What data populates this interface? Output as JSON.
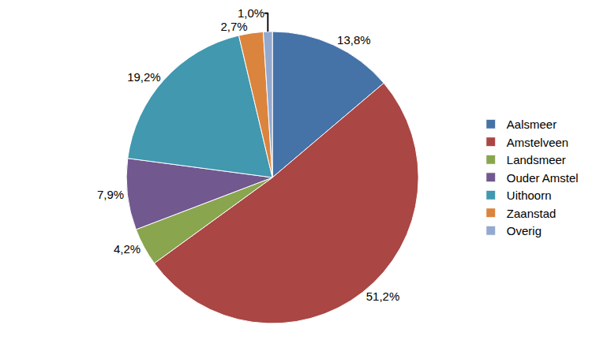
{
  "chart_data": {
    "type": "pie",
    "categories": [
      "Aalsmeer",
      "Amstelveen",
      "Landsmeer",
      "Ouder Amstel",
      "Uithoorn",
      "Zaanstad",
      "Overig"
    ],
    "values": [
      13.8,
      51.2,
      4.2,
      7.9,
      19.2,
      2.7,
      1.0
    ],
    "value_labels": [
      "13,8%",
      "51,2%",
      "4,2%",
      "7,9%",
      "19,2%",
      "2,7%",
      "1,0%"
    ],
    "colors": [
      "#4572A7",
      "#AA4643",
      "#89A54E",
      "#71588F",
      "#4198AF",
      "#DB843D",
      "#93A9CF"
    ],
    "data_labels": true,
    "legend": "right"
  }
}
